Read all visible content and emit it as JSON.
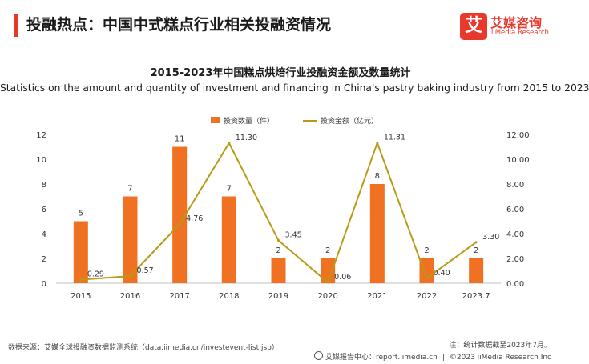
{
  "header": {
    "title": "投融热点：中国中式糕点行业相关投融资情况"
  },
  "logo": {
    "mark": "艾",
    "name_cn": "艾媒咨询",
    "name_en": "iiMedia Research"
  },
  "chart_data": {
    "type": "bar+line",
    "title": "2015-2023年中国糕点烘焙行业投融资金额及数量统计",
    "subtitle": "Statistics on the amount and quantity of investment and financing in China's pastry baking industry from 2015 to 2023",
    "categories": [
      "2015",
      "2016",
      "2017",
      "2018",
      "2019",
      "2020",
      "2021",
      "2022",
      "2023.7"
    ],
    "series": [
      {
        "name": "投资数量（件）",
        "type": "bar",
        "axis": "left",
        "color": "#f07121",
        "values": [
          5,
          7,
          11,
          7,
          2,
          2,
          8,
          2,
          2
        ],
        "labels": [
          "5",
          "7",
          "11",
          "7",
          "2",
          "2",
          "8",
          "2",
          "2"
        ]
      },
      {
        "name": "投资金额（亿元）",
        "type": "line",
        "axis": "right",
        "color": "#b89a14",
        "values": [
          0.29,
          0.57,
          4.76,
          11.3,
          3.45,
          0.06,
          11.31,
          0.4,
          3.3
        ],
        "labels": [
          "0.29",
          "0.57",
          "4.76",
          "11.30",
          "3.45",
          "0.06",
          "11.31",
          "0.40",
          "3.30"
        ]
      }
    ],
    "left_axis": {
      "ticks": [
        "0",
        "2",
        "4",
        "6",
        "8",
        "10",
        "12"
      ],
      "range": [
        0,
        12
      ]
    },
    "right_axis": {
      "ticks": [
        "0.00",
        "2.00",
        "4.00",
        "6.00",
        "8.00",
        "10.00",
        "12.00"
      ],
      "range": [
        0,
        12
      ]
    },
    "legend_position": "top-center",
    "grid": false
  },
  "footer": {
    "source": "数据来源：艾媒全球投融资数据监测系统（data.iimedia.cn/investevent-list.jsp）",
    "note": "注：统计数据截至2023年7月。",
    "report_site": "艾媒报告中心：report.iimedia.cn",
    "copyright": "©2023  iiMedia Research  Inc"
  }
}
